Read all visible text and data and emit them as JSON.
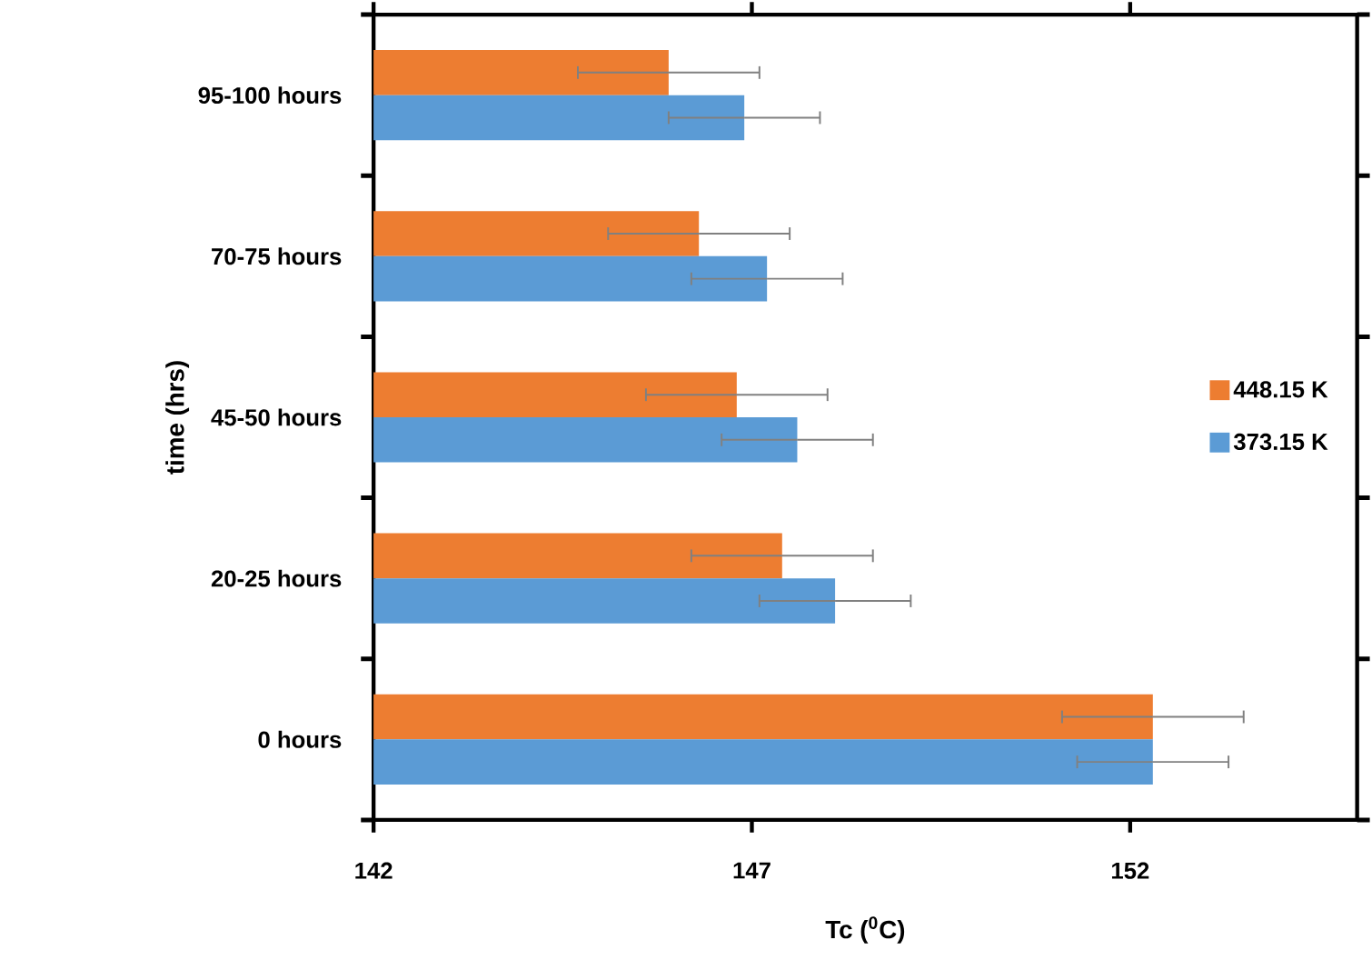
{
  "chart_data": {
    "type": "bar",
    "orientation": "horizontal",
    "categories": [
      "95-100 hours",
      "70-75 hours",
      "45-50 hours",
      "20-25 hours",
      "0 hours"
    ],
    "series": [
      {
        "name": "448.15 K",
        "color": "#ed7d31",
        "values": [
          145.9,
          146.3,
          146.8,
          147.4,
          152.3
        ],
        "errors": [
          1.2,
          1.2,
          1.2,
          1.2,
          1.2
        ]
      },
      {
        "name": "373.15 K",
        "color": "#5b9bd5",
        "values": [
          146.9,
          147.2,
          147.6,
          148.1,
          152.3
        ],
        "errors": [
          1.0,
          1.0,
          1.0,
          1.0,
          1.0
        ]
      }
    ],
    "xlim": [
      142,
      155
    ],
    "xticks": [
      142,
      147,
      152
    ],
    "xlabel": "Tc ($^{0}$C)",
    "ylabel": "time (hrs)",
    "legend": "right",
    "grid": false
  }
}
